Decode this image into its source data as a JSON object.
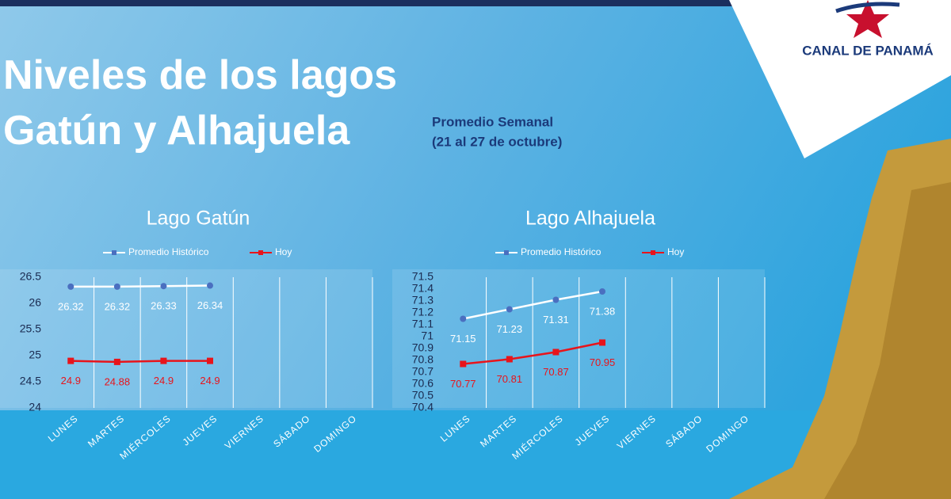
{
  "title_lines": [
    "Niveles de los lagos",
    "Gatún y Alhajuela"
  ],
  "subtitle_lines": [
    "Promedio Semanal",
    "(21 al 27 de octubre)"
  ],
  "logo": "CANAL DE PANAMÁ",
  "chart_data": [
    {
      "type": "line",
      "title": "Lago Gatún",
      "categories": [
        "LUNES",
        "MARTES",
        "MIÉRCOLES",
        "JUEVES",
        "VIERNES",
        "SÁBADO",
        "DOMINGO"
      ],
      "series": [
        {
          "name": "Promedio Histórico",
          "color": "#ffffff",
          "marker_color": "#4a6fc0",
          "values": [
            26.32,
            26.32,
            26.33,
            26.34,
            null,
            null,
            null
          ]
        },
        {
          "name": "Hoy",
          "color": "#e8141b",
          "marker_color": "#e8141b",
          "values": [
            24.9,
            24.88,
            24.9,
            24.9,
            null,
            null,
            null
          ]
        }
      ],
      "ylim": [
        24,
        26.5
      ],
      "yticks": [
        24,
        24.5,
        25,
        25.5,
        26,
        26.5
      ],
      "grid": true
    },
    {
      "type": "line",
      "title": "Lago Alhajuela",
      "categories": [
        "LUNES",
        "MARTES",
        "MIÉRCOLES",
        "JUEVES",
        "VIERNES",
        "SÁBADO",
        "DOMINGO"
      ],
      "series": [
        {
          "name": "Promedio Histórico",
          "color": "#ffffff",
          "marker_color": "#4a6fc0",
          "values": [
            71.15,
            71.23,
            71.31,
            71.38,
            null,
            null,
            null
          ]
        },
        {
          "name": "Hoy",
          "color": "#e8141b",
          "marker_color": "#e8141b",
          "values": [
            70.77,
            70.81,
            70.87,
            70.95,
            null,
            null,
            null
          ]
        }
      ],
      "ylim": [
        70.4,
        71.5
      ],
      "yticks": [
        70.4,
        70.5,
        70.6,
        70.7,
        70.8,
        70.9,
        71,
        71.1,
        71.2,
        71.3,
        71.4,
        71.5
      ],
      "grid": true
    }
  ]
}
